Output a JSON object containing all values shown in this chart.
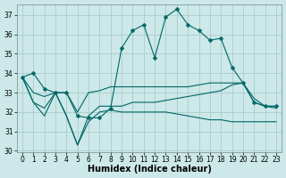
{
  "xlabel": "Humidex (Indice chaleur)",
  "bg_color": "#cce8e8",
  "grid_color": "#aacccc",
  "line_color": "#006666",
  "xlim": [
    -0.5,
    23.5
  ],
  "ylim": [
    29.95,
    37.55
  ],
  "yticks": [
    30,
    31,
    32,
    33,
    34,
    35,
    36,
    37
  ],
  "xticks": [
    0,
    1,
    2,
    3,
    4,
    5,
    6,
    7,
    8,
    9,
    10,
    11,
    12,
    13,
    14,
    15,
    16,
    17,
    18,
    19,
    20,
    21,
    22,
    23
  ],
  "series": [
    [
      33.8,
      34.0,
      33.2,
      33.0,
      33.0,
      31.8,
      31.7,
      31.7,
      32.2,
      35.3,
      36.2,
      36.5,
      34.8,
      36.9,
      37.3,
      36.5,
      36.2,
      35.7,
      35.8,
      34.3,
      33.5,
      32.5,
      32.3,
      32.3
    ],
    [
      33.8,
      33.0,
      32.8,
      33.0,
      33.0,
      32.0,
      33.0,
      33.1,
      33.3,
      33.3,
      33.3,
      33.3,
      33.3,
      33.3,
      33.3,
      33.3,
      33.4,
      33.5,
      33.5,
      33.5,
      33.5,
      32.5,
      32.3,
      32.3
    ],
    [
      33.8,
      32.5,
      32.2,
      33.0,
      31.8,
      30.3,
      31.8,
      32.3,
      32.3,
      32.3,
      32.5,
      32.5,
      32.5,
      32.6,
      32.7,
      32.8,
      32.9,
      33.0,
      33.1,
      33.4,
      33.5,
      32.7,
      32.3,
      32.2
    ],
    [
      33.8,
      32.5,
      31.8,
      33.0,
      31.8,
      30.3,
      31.5,
      32.0,
      32.1,
      32.0,
      32.0,
      32.0,
      32.0,
      32.0,
      31.9,
      31.8,
      31.7,
      31.6,
      31.6,
      31.5,
      31.5,
      31.5,
      31.5,
      31.5
    ]
  ],
  "marker_series_idx": 0,
  "marker_size": 2.5,
  "linewidth": 0.8,
  "tick_fontsize": 5.5,
  "xlabel_fontsize": 7
}
